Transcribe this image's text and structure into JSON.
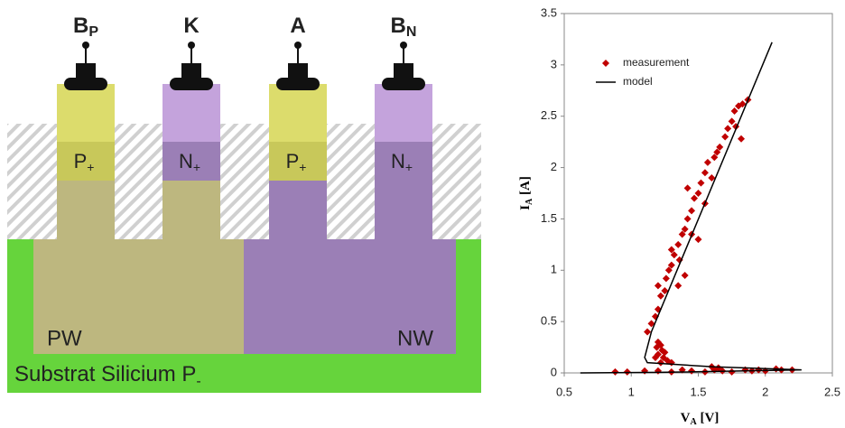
{
  "diagram": {
    "terminals": [
      {
        "label": "B",
        "sub": "P"
      },
      {
        "label": "K"
      },
      {
        "label": "A"
      },
      {
        "label": "B",
        "sub": "N"
      }
    ],
    "regions": [
      {
        "label": "P",
        "sub": "+"
      },
      {
        "label": "N",
        "sub": "+"
      },
      {
        "label": "P",
        "sub": "+"
      },
      {
        "label": "N",
        "sub": "+"
      }
    ],
    "pw": "PW",
    "nw": "NW",
    "substrate": {
      "label": "Substrat Silicium P",
      "sub": "-"
    }
  },
  "chart_data": {
    "type": "scatter",
    "x_label": {
      "label": "V",
      "sub": "A",
      "unit": " [V]"
    },
    "y_label": {
      "label": "I",
      "sub": "A",
      "unit": " [A]"
    },
    "xlim": [
      0.5,
      2.5
    ],
    "xticks": [
      0.5,
      1,
      1.5,
      2,
      2.5
    ],
    "ylim": [
      0,
      3.5
    ],
    "yticks": [
      0,
      0.5,
      1,
      1.5,
      2,
      2.5,
      3,
      3.5
    ],
    "legend": "top-left",
    "series": [
      {
        "name": "measurement",
        "color": "#c00000",
        "x": [
          0.88,
          0.97,
          1.1,
          1.2,
          1.3,
          1.38,
          1.45,
          1.55,
          1.62,
          1.68,
          1.75,
          1.85,
          1.9,
          1.95,
          2.0,
          2.08,
          2.12,
          2.2,
          1.6,
          1.65,
          1.2,
          1.22,
          1.23,
          1.25,
          1.2,
          1.24,
          1.27,
          1.3,
          1.22,
          1.19,
          1.18,
          1.12,
          1.15,
          1.18,
          1.2,
          1.22,
          1.2,
          1.25,
          1.26,
          1.28,
          1.3,
          1.32,
          1.35,
          1.3,
          1.38,
          1.36,
          1.4,
          1.42,
          1.45,
          1.47,
          1.42,
          1.5,
          1.52,
          1.55,
          1.57,
          1.6,
          1.62,
          1.64,
          1.66,
          1.7,
          1.72,
          1.75,
          1.77,
          1.8,
          1.78,
          1.83,
          1.87,
          1.82,
          1.5,
          1.45,
          1.55,
          1.4,
          1.35
        ],
        "values": [
          0.01,
          0.01,
          0.02,
          0.02,
          0.01,
          0.03,
          0.02,
          0.01,
          0.03,
          0.02,
          0.01,
          0.03,
          0.02,
          0.03,
          0.02,
          0.04,
          0.03,
          0.03,
          0.06,
          0.05,
          0.3,
          0.27,
          0.22,
          0.2,
          0.18,
          0.15,
          0.12,
          0.1,
          0.1,
          0.25,
          0.15,
          0.4,
          0.48,
          0.55,
          0.62,
          0.75,
          0.85,
          0.8,
          0.92,
          1.0,
          1.05,
          1.15,
          1.25,
          1.2,
          1.35,
          1.1,
          1.4,
          1.5,
          1.58,
          1.7,
          1.8,
          1.75,
          1.85,
          1.95,
          2.05,
          1.9,
          2.1,
          2.15,
          2.2,
          2.3,
          2.38,
          2.45,
          2.55,
          2.6,
          2.4,
          2.62,
          2.66,
          2.28,
          1.3,
          1.35,
          1.65,
          0.95,
          0.85
        ]
      },
      {
        "name": "model",
        "color": "#000000",
        "x": [
          0.62,
          1.2,
          2.27,
          1.6,
          1.12,
          1.1,
          1.15,
          2.05
        ],
        "values": [
          0,
          0.005,
          0.03,
          0.06,
          0.1,
          0.15,
          0.4,
          3.22
        ]
      }
    ]
  }
}
